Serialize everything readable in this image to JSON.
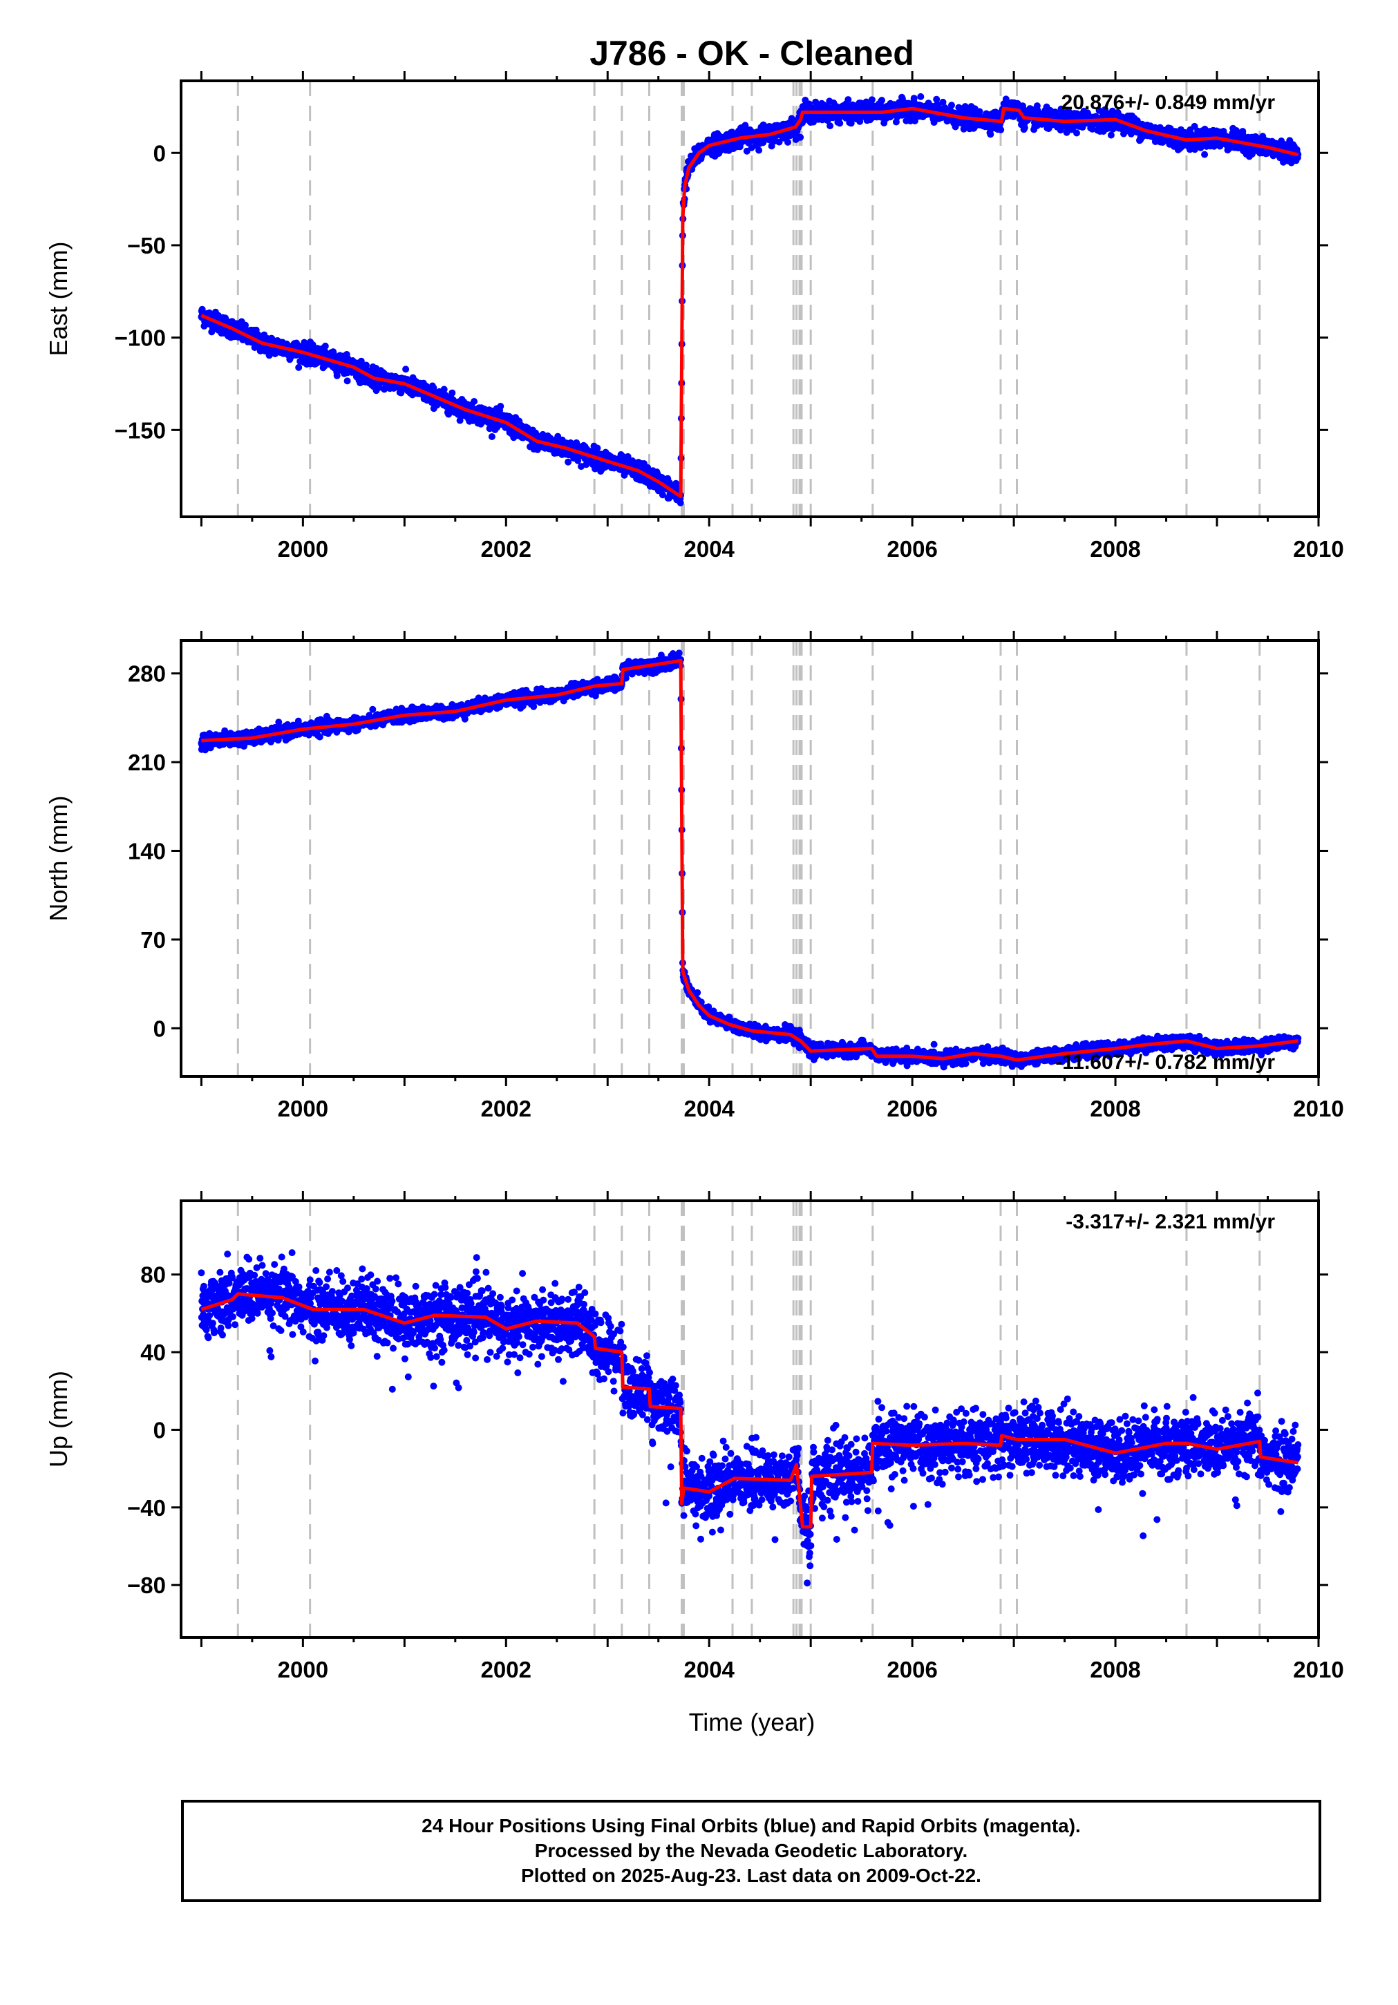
{
  "title": "J786  - OK - Cleaned",
  "xlabel": "Time (year)",
  "footer": {
    "line1": "24 Hour Positions Using Final Orbits (blue) and Rapid Orbits (magenta).",
    "line2": "Processed by the Nevada Geodetic Laboratory.",
    "line3": "Plotted on 2025-Aug-23. Last data on 2009-Oct-22."
  },
  "colors": {
    "points": "#0000ff",
    "model": "#ff0000",
    "breaks": "#c0c0c0",
    "frame": "#000000"
  },
  "chart_data": [
    {
      "type": "scatter",
      "ylabel": "East (mm)",
      "rate_label": "20.876+/- 0.849 mm/yr",
      "xlim": [
        1998.8,
        2010.0
      ],
      "ylim": [
        -197,
        39
      ],
      "xticks": [
        2000,
        2002,
        2004,
        2006,
        2008,
        2010
      ],
      "yticks": [
        -150,
        -100,
        -50,
        0
      ],
      "noise": 2.5,
      "outliers": 0,
      "model": [
        [
          1999.0,
          -88
        ],
        [
          1999.3,
          -95
        ],
        [
          1999.6,
          -103
        ],
        [
          2000.0,
          -108
        ],
        [
          2000.5,
          -116
        ],
        [
          2000.7,
          -122
        ],
        [
          2001.0,
          -125
        ],
        [
          2001.3,
          -132
        ],
        [
          2001.6,
          -139
        ],
        [
          2002.0,
          -146
        ],
        [
          2002.3,
          -156
        ],
        [
          2002.6,
          -160
        ],
        [
          2003.0,
          -167
        ],
        [
          2003.3,
          -172
        ],
        [
          2003.5,
          -178
        ],
        [
          2003.72,
          -186
        ],
        [
          2003.74,
          -35
        ],
        [
          2003.76,
          -18
        ],
        [
          2003.8,
          -8
        ],
        [
          2003.9,
          0
        ],
        [
          2004.0,
          4
        ],
        [
          2004.3,
          8
        ],
        [
          2004.6,
          10
        ],
        [
          2004.85,
          14
        ],
        [
          2004.9,
          18
        ],
        [
          2004.92,
          22
        ],
        [
          2005.3,
          22
        ],
        [
          2005.7,
          22
        ],
        [
          2006.0,
          24
        ],
        [
          2006.5,
          19
        ],
        [
          2006.88,
          17
        ],
        [
          2006.9,
          24
        ],
        [
          2007.05,
          23
        ],
        [
          2007.1,
          19
        ],
        [
          2007.5,
          17
        ],
        [
          2008.0,
          18
        ],
        [
          2008.3,
          12
        ],
        [
          2008.7,
          7
        ],
        [
          2009.0,
          8
        ],
        [
          2009.5,
          3
        ],
        [
          2009.8,
          -1
        ]
      ],
      "breaks": [
        1999.36,
        2000.07,
        2002.87,
        2003.14,
        2003.41,
        2003.73,
        2003.75,
        2004.23,
        2004.42,
        2004.83,
        2004.86,
        2004.89,
        2004.91,
        2005.0,
        2005.61,
        2006.87,
        2007.03,
        2008.7,
        2009.42
      ]
    },
    {
      "type": "scatter",
      "ylabel": "North (mm)",
      "rate_label": "-11.607+/- 0.782 mm/yr",
      "xlim": [
        1998.8,
        2010.0
      ],
      "ylim": [
        -38,
        306
      ],
      "xticks": [
        2000,
        2002,
        2004,
        2006,
        2008,
        2010
      ],
      "yticks": [
        0,
        70,
        140,
        210,
        280
      ],
      "noise": 2.5,
      "outliers": 0,
      "model": [
        [
          1999.0,
          227
        ],
        [
          1999.5,
          229
        ],
        [
          2000.0,
          236
        ],
        [
          2000.5,
          240
        ],
        [
          2001.0,
          247
        ],
        [
          2001.5,
          250
        ],
        [
          2002.0,
          259
        ],
        [
          2002.5,
          263
        ],
        [
          2002.87,
          270
        ],
        [
          2003.14,
          272
        ],
        [
          2003.15,
          283
        ],
        [
          2003.72,
          290
        ],
        [
          2003.74,
          45
        ],
        [
          2003.8,
          30
        ],
        [
          2003.9,
          18
        ],
        [
          2004.0,
          10
        ],
        [
          2004.2,
          3
        ],
        [
          2004.42,
          -2
        ],
        [
          2004.8,
          -5
        ],
        [
          2004.9,
          -10
        ],
        [
          2005.0,
          -18
        ],
        [
          2005.6,
          -16
        ],
        [
          2005.65,
          -22
        ],
        [
          2006.0,
          -22
        ],
        [
          2006.3,
          -24
        ],
        [
          2006.6,
          -20
        ],
        [
          2006.87,
          -22
        ],
        [
          2007.03,
          -25
        ],
        [
          2007.5,
          -20
        ],
        [
          2008.0,
          -16
        ],
        [
          2008.3,
          -13
        ],
        [
          2008.7,
          -10
        ],
        [
          2009.0,
          -16
        ],
        [
          2009.4,
          -14
        ],
        [
          2009.8,
          -10
        ]
      ],
      "breaks": [
        1999.36,
        2000.07,
        2002.87,
        2003.14,
        2003.41,
        2003.73,
        2003.75,
        2004.23,
        2004.42,
        2004.83,
        2004.86,
        2004.89,
        2004.91,
        2005.0,
        2005.61,
        2006.87,
        2007.03,
        2008.7,
        2009.42
      ]
    },
    {
      "type": "scatter",
      "ylabel": "Up (mm)",
      "rate_label": "-3.317+/- 2.321 mm/yr",
      "xlim": [
        1998.8,
        2010.0
      ],
      "ylim": [
        -107,
        118
      ],
      "xticks": [
        2000,
        2002,
        2004,
        2006,
        2008,
        2010
      ],
      "yticks": [
        -80,
        -40,
        0,
        40,
        80
      ],
      "noise": 8,
      "outliers": 45,
      "model": [
        [
          1999.0,
          62
        ],
        [
          1999.3,
          67
        ],
        [
          1999.36,
          70
        ],
        [
          1999.8,
          68
        ],
        [
          2000.05,
          63
        ],
        [
          2000.1,
          62
        ],
        [
          2000.6,
          62
        ],
        [
          2001.0,
          55
        ],
        [
          2001.3,
          59
        ],
        [
          2001.8,
          58
        ],
        [
          2002.0,
          52
        ],
        [
          2002.3,
          56
        ],
        [
          2002.7,
          55
        ],
        [
          2002.87,
          48
        ],
        [
          2002.88,
          42
        ],
        [
          2003.14,
          40
        ],
        [
          2003.15,
          22
        ],
        [
          2003.41,
          21
        ],
        [
          2003.42,
          12
        ],
        [
          2003.72,
          11
        ],
        [
          2003.73,
          -38
        ],
        [
          2003.75,
          -30
        ],
        [
          2004.0,
          -32
        ],
        [
          2004.25,
          -25
        ],
        [
          2004.8,
          -26
        ],
        [
          2004.86,
          -18
        ],
        [
          2004.92,
          -50
        ],
        [
          2005.0,
          -50
        ],
        [
          2005.01,
          -24
        ],
        [
          2005.6,
          -22
        ],
        [
          2005.61,
          -7
        ],
        [
          2006.0,
          -8
        ],
        [
          2006.5,
          -7
        ],
        [
          2006.87,
          -8
        ],
        [
          2006.88,
          -3
        ],
        [
          2007.03,
          -5
        ],
        [
          2007.5,
          -5
        ],
        [
          2008.0,
          -12
        ],
        [
          2008.5,
          -7
        ],
        [
          2008.7,
          -7
        ],
        [
          2009.0,
          -10
        ],
        [
          2009.42,
          -6
        ],
        [
          2009.43,
          -14
        ],
        [
          2009.8,
          -17
        ]
      ],
      "breaks": [
        1999.36,
        2000.07,
        2002.87,
        2003.14,
        2003.41,
        2003.73,
        2003.75,
        2004.23,
        2004.42,
        2004.83,
        2004.86,
        2004.89,
        2004.91,
        2005.0,
        2005.61,
        2006.87,
        2007.03,
        2008.7,
        2009.42
      ]
    }
  ]
}
